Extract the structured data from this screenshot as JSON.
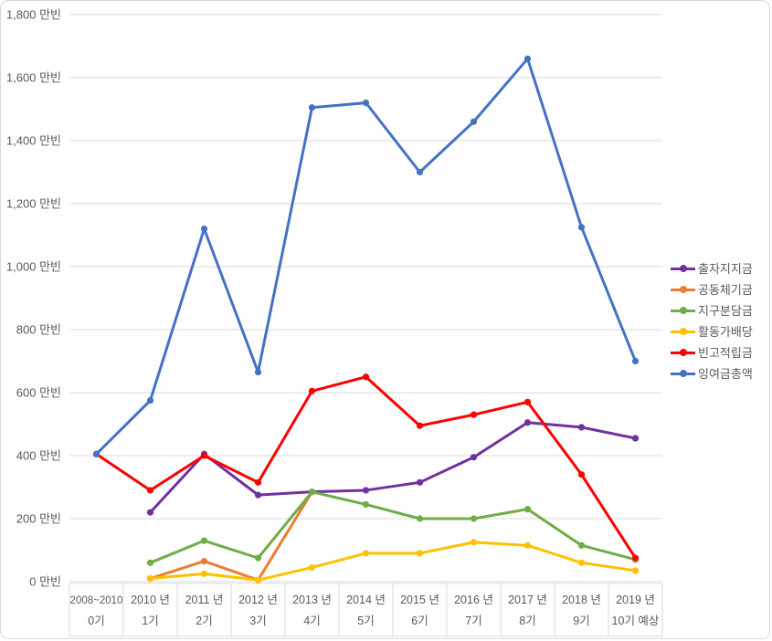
{
  "chart": {
    "background": "#FFFFFF",
    "border_color": "#D9D9D9",
    "grid_color": "#D9D9D9",
    "text_color": "#595959",
    "legend_position": "right"
  },
  "chart_data": {
    "type": "line",
    "title": "",
    "xlabel": "",
    "ylabel": "",
    "unit_suffix": "만빈",
    "ylim": [
      0,
      1800
    ],
    "ytick_step": 200,
    "grid": true,
    "legend_position": "right",
    "y_ticks": [
      "0 만빈",
      "200 만빈",
      "400 만빈",
      "600 만빈",
      "800 만빈",
      "1,000 만빈",
      "1,200 만빈",
      "1,400 만빈",
      "1,600 만빈",
      "1,800 만빈"
    ],
    "categories_year": [
      "2008~2010",
      "2010 년",
      "2011 년",
      "2012 년",
      "2013 년",
      "2014 년",
      "2015 년",
      "2016 년",
      "2017 년",
      "2018 년",
      "2019 년"
    ],
    "categories_term": [
      "0기",
      "1기",
      "2기",
      "3기",
      "4기",
      "5기",
      "6기",
      "7기",
      "8기",
      "9기",
      "10기 예상"
    ],
    "series": [
      {
        "name": "출자지지금",
        "color": "#7030A0",
        "values": [
          null,
          220,
          405,
          275,
          285,
          290,
          315,
          395,
          505,
          490,
          455
        ]
      },
      {
        "name": "공동체기금",
        "color": "#ED7D31",
        "values": [
          null,
          10,
          65,
          5,
          285,
          null,
          null,
          null,
          null,
          null,
          null
        ]
      },
      {
        "name": "지구분담금",
        "color": "#70AD47",
        "values": [
          null,
          60,
          130,
          75,
          285,
          245,
          200,
          200,
          230,
          115,
          70
        ]
      },
      {
        "name": "활동가배당",
        "color": "#FFC000",
        "values": [
          null,
          10,
          25,
          5,
          45,
          90,
          90,
          125,
          115,
          60,
          35
        ]
      },
      {
        "name": "빈고적립금",
        "color": "#FF0000",
        "values": [
          405,
          290,
          400,
          315,
          605,
          650,
          495,
          530,
          570,
          340,
          75
        ]
      },
      {
        "name": "잉여금총액",
        "color": "#4472C4",
        "values": [
          405,
          575,
          1120,
          665,
          1505,
          1520,
          1300,
          1460,
          1660,
          1125,
          700
        ]
      }
    ]
  }
}
